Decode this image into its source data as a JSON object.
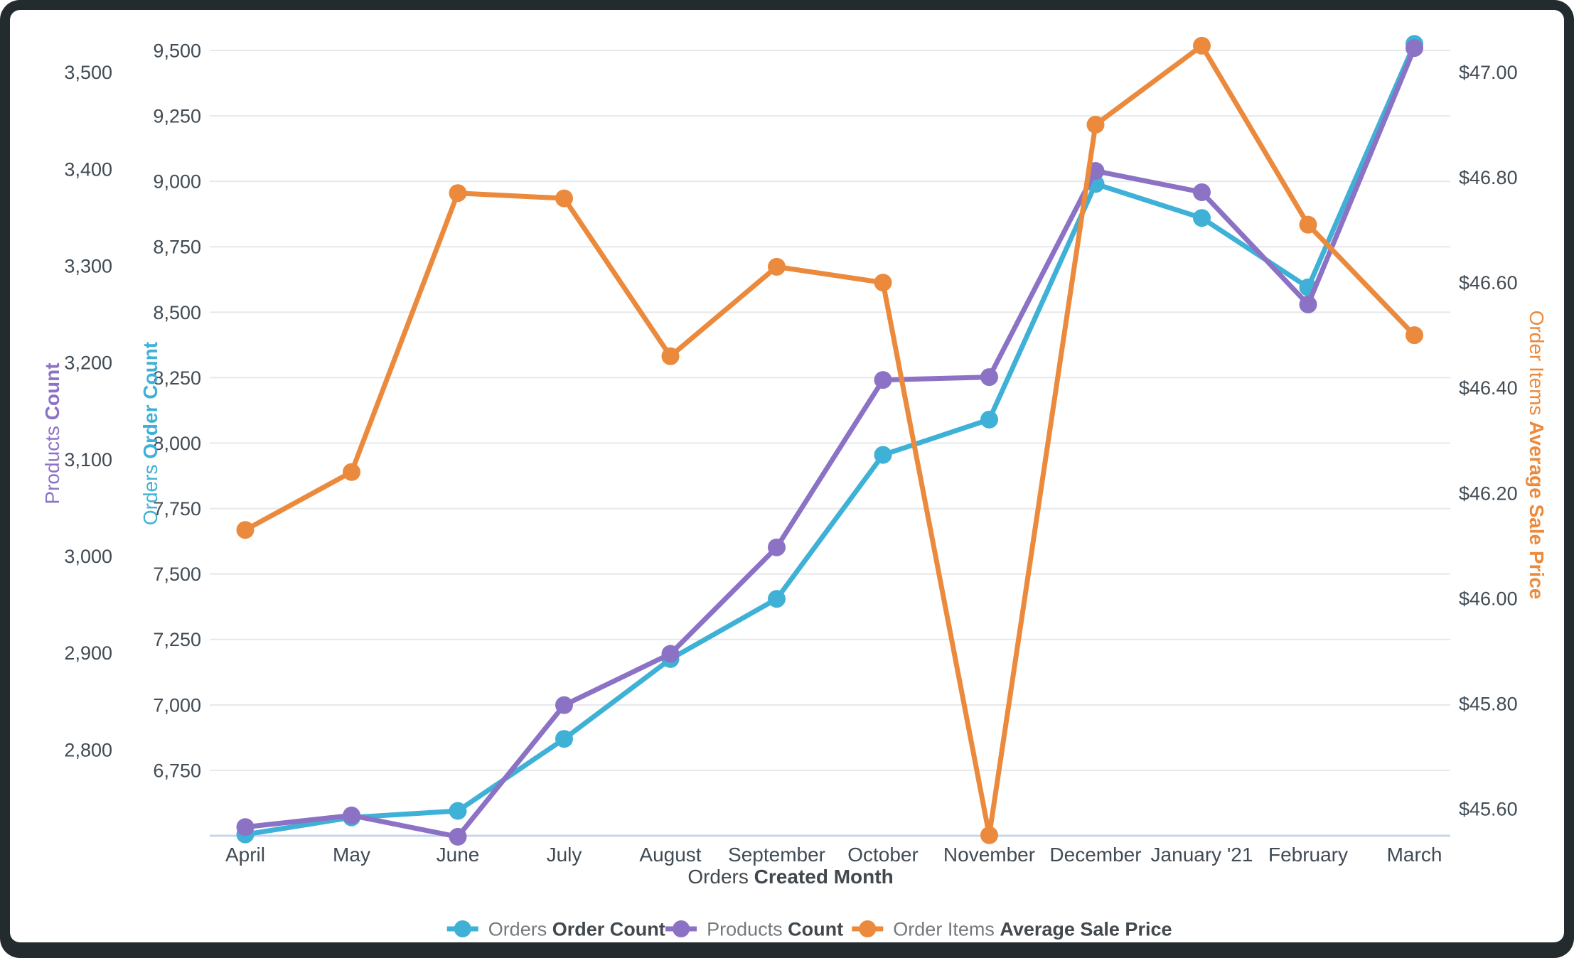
{
  "frame": {
    "outer_color": "#242b2f",
    "card_color": "#ffffff",
    "gridline_color": "#e7e8ea",
    "baseline_color": "#c8d4e8",
    "tick_text_color": "#414b54",
    "label_regular_color": "#75797d",
    "label_bold_color": "#41484e"
  },
  "chart_data": {
    "type": "line",
    "title": "",
    "categories": [
      "April",
      "May",
      "June",
      "July",
      "August",
      "September",
      "October",
      "November",
      "December",
      "January '21",
      "February",
      "March"
    ],
    "series": [
      {
        "name_regular": "Orders",
        "name_bold": "Order Count",
        "full_name": "Orders Order Count",
        "color": "#3fb1d6",
        "axis": "left_inner",
        "values": [
          6505,
          6570,
          6595,
          6870,
          7175,
          7405,
          7955,
          8090,
          8990,
          8860,
          8595,
          9525
        ]
      },
      {
        "name_regular": "Products",
        "name_bold": "Count",
        "full_name": "Products Count",
        "color": "#8c72c5",
        "axis": "left_outer",
        "values": [
          2720,
          2732,
          2710,
          2846,
          2899,
          3009,
          3182,
          3185,
          3398,
          3376,
          3260,
          3525
        ]
      },
      {
        "name_regular": "Order Items",
        "name_bold": "Average Sale Price",
        "full_name": "Order Items Average Sale Price",
        "color": "#eb8a3c",
        "axis": "right",
        "values": [
          46.13,
          46.24,
          46.77,
          46.76,
          46.46,
          46.63,
          46.6,
          45.55,
          46.9,
          47.05,
          46.71,
          46.5
        ]
      }
    ],
    "x_axis": {
      "title_regular": "Orders",
      "title_bold": "Created Month"
    },
    "axes": {
      "left_outer": {
        "title_regular": "Products",
        "title_bold": "Count",
        "color": "#8c72c5",
        "ticks": [
          "3,500",
          "3,400",
          "3,300",
          "3,200",
          "3,100",
          "3,000",
          "2,900",
          "2,800"
        ],
        "min": 2711,
        "max": 3522.5
      },
      "left_inner": {
        "title_regular": "Orders",
        "title_bold": "Order Count",
        "color": "#3fb1d6",
        "ticks": [
          "9,500",
          "9,250",
          "9,000",
          "8,750",
          "8,500",
          "8,250",
          "8,000",
          "7,750",
          "7,500",
          "7,250",
          "7,000",
          "6,750"
        ],
        "min": 6500,
        "max": 9500
      },
      "right": {
        "title_regular": "Order Items",
        "title_bold": "Average Sale Price",
        "color": "#eb8a3c",
        "ticks": [
          "$47.00",
          "$46.80",
          "$46.60",
          "$46.40",
          "$46.20",
          "$46.00",
          "$45.80",
          "$45.60"
        ],
        "min": 45.549,
        "max": 47.041
      }
    },
    "legend_position": "bottom",
    "grid": true
  }
}
